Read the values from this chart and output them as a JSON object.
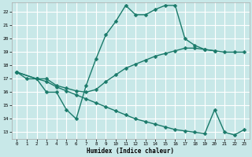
{
  "xlabel": "Humidex (Indice chaleur)",
  "bg_color": "#c8e8e8",
  "grid_color": "#ffffff",
  "line_color": "#1a7a6a",
  "xlim_min": -0.5,
  "xlim_max": 23.5,
  "ylim_min": 12.5,
  "ylim_max": 22.7,
  "xtick_vals": [
    0,
    1,
    2,
    3,
    4,
    5,
    6,
    7,
    8,
    9,
    10,
    11,
    12,
    13,
    14,
    15,
    16,
    17,
    18,
    19,
    20,
    21,
    22,
    23
  ],
  "ytick_vals": [
    13,
    14,
    15,
    16,
    17,
    18,
    19,
    20,
    21,
    22
  ],
  "line1_x": [
    0,
    1,
    2,
    3,
    4,
    5,
    6,
    7,
    8,
    9,
    10,
    11,
    12,
    13,
    14,
    15,
    16,
    17,
    18,
    19,
    20
  ],
  "line1_y": [
    17.5,
    17.0,
    17.0,
    16.0,
    16.0,
    14.7,
    14.0,
    16.5,
    18.5,
    20.3,
    21.3,
    22.5,
    21.8,
    21.8,
    22.2,
    22.5,
    22.5,
    20.0,
    19.5,
    19.2,
    19.1
  ],
  "line2_x": [
    0,
    2,
    3,
    4,
    5,
    6,
    7,
    8,
    9,
    10,
    11,
    12,
    13,
    14,
    15,
    16,
    17,
    18,
    19,
    20,
    21,
    22,
    23
  ],
  "line2_y": [
    17.5,
    17.0,
    17.0,
    16.5,
    16.3,
    16.1,
    16.0,
    16.2,
    16.8,
    17.3,
    17.8,
    18.1,
    18.4,
    18.7,
    18.9,
    19.1,
    19.3,
    19.3,
    19.2,
    19.1,
    19.0,
    19.0,
    19.0
  ],
  "line3_x": [
    0,
    2,
    3,
    4,
    5,
    6,
    7,
    8,
    9,
    10,
    11,
    12,
    13,
    14,
    15,
    16,
    17,
    18,
    19,
    20,
    21,
    22,
    23
  ],
  "line3_y": [
    17.5,
    17.0,
    16.8,
    16.4,
    16.1,
    15.8,
    15.5,
    15.2,
    14.9,
    14.6,
    14.3,
    14.0,
    13.8,
    13.6,
    13.4,
    13.2,
    13.1,
    13.0,
    12.9,
    14.7,
    13.0,
    12.8,
    13.2
  ]
}
